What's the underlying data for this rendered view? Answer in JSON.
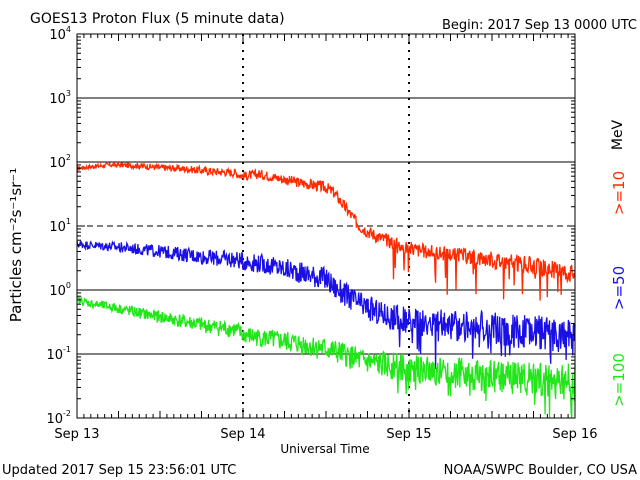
{
  "header": {
    "title": "GOES13 Proton Flux (5 minute data)",
    "begin": "Begin: 2017 Sep 13 0000 UTC"
  },
  "footer": {
    "updated": "Updated 2017 Sep 15 23:56:01 UTC",
    "credit": "NOAA/SWPC Boulder, CO USA"
  },
  "colors": {
    "gt10": "#ff2a00",
    "gt50": "#1a10e6",
    "gt100": "#22e61a",
    "axis": "#000000",
    "mev": "#000000"
  },
  "chart_data": {
    "type": "line",
    "title": "GOES13 Proton Flux (5 minute data)",
    "xlabel": "Universal Time",
    "ylabel": "Particles cm⁻²s⁻¹sr⁻¹",
    "yscale": "log",
    "ylim": [
      0.01,
      10000
    ],
    "xlim": [
      0,
      3
    ],
    "x_unit": "days since 2017 Sep 13 0000 UTC",
    "x_ticks": [
      {
        "x": 0,
        "label": "Sep 13"
      },
      {
        "x": 1,
        "label": "Sep 14"
      },
      {
        "x": 2,
        "label": "Sep 15"
      },
      {
        "x": 3,
        "label": "Sep 16"
      }
    ],
    "y_ticks": [
      {
        "value": 0.01,
        "base": "10",
        "exp": "-2"
      },
      {
        "value": 0.1,
        "base": "10",
        "exp": "-1"
      },
      {
        "value": 1,
        "base": "10",
        "exp": "0"
      },
      {
        "value": 10,
        "base": "10",
        "exp": "1"
      },
      {
        "value": 100,
        "base": "10",
        "exp": "2"
      },
      {
        "value": 1000,
        "base": "10",
        "exp": "3"
      },
      {
        "value": 10000,
        "base": "10",
        "exp": "4"
      }
    ],
    "threshold_lines": [
      {
        "value": 1000,
        "style": "solid"
      },
      {
        "value": 100,
        "style": "solid"
      },
      {
        "value": 10,
        "style": "dashed"
      },
      {
        "value": 1,
        "style": "solid"
      },
      {
        "value": 0.1,
        "style": "solid"
      }
    ],
    "energy_unit": "MeV",
    "series": [
      {
        "name": ">=10",
        "color": "#ff2a00",
        "x": [
          0,
          0.1,
          0.2,
          0.35,
          0.5,
          0.65,
          0.8,
          0.95,
          1.0,
          1.1,
          1.3,
          1.5,
          1.55,
          1.6,
          1.65,
          1.7,
          1.8,
          1.9,
          2.0,
          2.1,
          2.3,
          2.5,
          2.7,
          2.9,
          3.0
        ],
        "values": [
          80,
          85,
          90,
          88,
          82,
          78,
          72,
          68,
          60,
          65,
          50,
          40,
          33,
          22,
          15,
          10,
          7,
          5.5,
          4.5,
          4,
          3.5,
          3,
          2.5,
          2,
          1.8
        ]
      },
      {
        "name": ">=50",
        "color": "#1a10e6",
        "x": [
          0,
          0.1,
          0.2,
          0.35,
          0.5,
          0.65,
          0.8,
          0.95,
          1.0,
          1.1,
          1.3,
          1.5,
          1.55,
          1.6,
          1.7,
          1.8,
          1.9,
          2.0,
          2.1,
          2.3,
          2.5,
          2.7,
          2.9,
          3.0
        ],
        "values": [
          5.2,
          5.0,
          4.8,
          4.4,
          4.0,
          3.6,
          3.2,
          3.0,
          2.8,
          2.6,
          2.0,
          1.5,
          1.1,
          0.9,
          0.6,
          0.45,
          0.38,
          0.32,
          0.3,
          0.28,
          0.25,
          0.22,
          0.2,
          0.18
        ]
      },
      {
        "name": ">=100",
        "color": "#22e61a",
        "x": [
          0,
          0.1,
          0.2,
          0.35,
          0.5,
          0.65,
          0.8,
          0.95,
          1.0,
          1.1,
          1.3,
          1.5,
          1.6,
          1.7,
          1.8,
          1.9,
          2.0,
          2.1,
          2.3,
          2.5,
          2.7,
          2.9,
          3.0
        ],
        "values": [
          0.7,
          0.6,
          0.55,
          0.45,
          0.38,
          0.32,
          0.27,
          0.24,
          0.2,
          0.18,
          0.15,
          0.12,
          0.1,
          0.08,
          0.07,
          0.065,
          0.06,
          0.055,
          0.05,
          0.045,
          0.04,
          0.038,
          0.035
        ]
      }
    ]
  }
}
